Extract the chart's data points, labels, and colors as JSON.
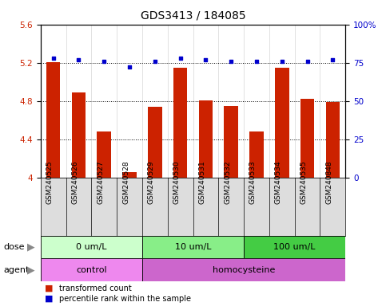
{
  "title": "GDS3413 / 184085",
  "samples": [
    "GSM240525",
    "GSM240526",
    "GSM240527",
    "GSM240528",
    "GSM240529",
    "GSM240530",
    "GSM240531",
    "GSM240532",
    "GSM240533",
    "GSM240534",
    "GSM240535",
    "GSM240848"
  ],
  "red_values": [
    5.21,
    4.89,
    4.48,
    4.06,
    4.74,
    5.15,
    4.81,
    4.75,
    4.48,
    5.15,
    4.82,
    4.79
  ],
  "blue_values": [
    78,
    77,
    76,
    72,
    76,
    78,
    77,
    76,
    76,
    76,
    76,
    77
  ],
  "ylim_left": [
    4.0,
    5.6
  ],
  "ylim_right": [
    0,
    100
  ],
  "yticks_left": [
    4.0,
    4.4,
    4.8,
    5.2,
    5.6
  ],
  "yticks_right": [
    0,
    25,
    50,
    75,
    100
  ],
  "ytick_labels_left": [
    "4",
    "4.4",
    "4.8",
    "5.2",
    "5.6"
  ],
  "ytick_labels_right": [
    "0",
    "25",
    "50",
    "75",
    "100%"
  ],
  "bar_color": "#cc2200",
  "dot_color": "#0000cc",
  "bg_figure": "#ffffff",
  "dose_groups": [
    {
      "label": "0 um/L",
      "start": 0,
      "end": 3,
      "color": "#ccffcc"
    },
    {
      "label": "10 um/L",
      "start": 4,
      "end": 7,
      "color": "#88ee88"
    },
    {
      "label": "100 um/L",
      "start": 8,
      "end": 11,
      "color": "#44cc44"
    }
  ],
  "agent_groups": [
    {
      "label": "control",
      "start": 0,
      "end": 3,
      "color": "#ee88ee"
    },
    {
      "label": "homocysteine",
      "start": 4,
      "end": 11,
      "color": "#cc66cc"
    }
  ],
  "legend_items": [
    {
      "label": "transformed count",
      "color": "#cc2200"
    },
    {
      "label": "percentile rank within the sample",
      "color": "#0000cc"
    }
  ],
  "title_fontsize": 10,
  "tick_fontsize": 7.5,
  "label_fontsize": 8,
  "sample_fontsize": 6.5,
  "bar_width": 0.55
}
